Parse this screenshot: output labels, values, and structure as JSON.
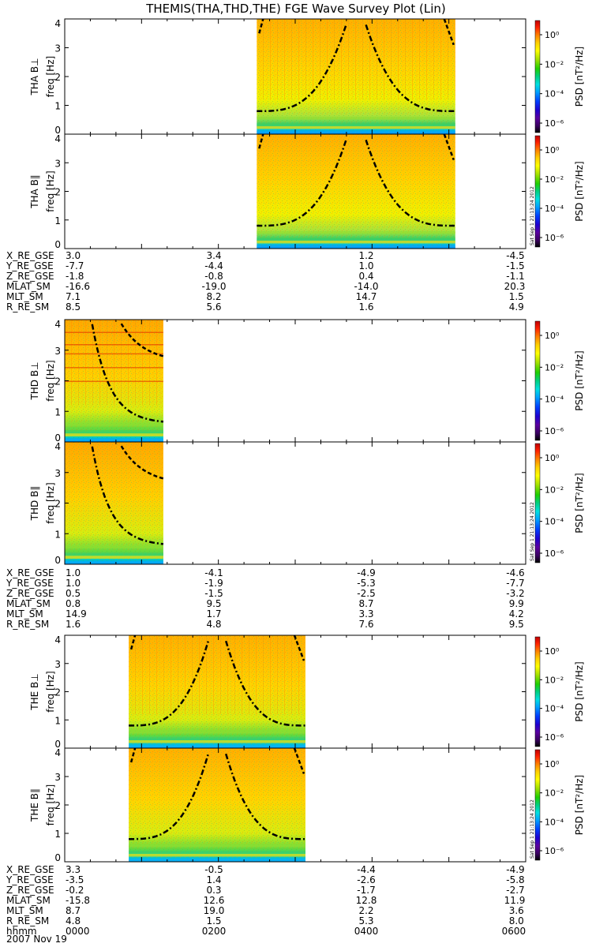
{
  "title": "THEMIS(THA,THD,THE) FGE Wave Survey Plot (Lin)",
  "colorbar": {
    "label": "PSD [nT²/Hz]",
    "tick_labels": [
      "10⁰",
      "10⁻²",
      "10⁻⁴",
      "10⁻⁶"
    ],
    "stamp": "Sat Sep  1 21:13:24 2012",
    "colors": [
      "#000000",
      "#3a0060",
      "#5a00a0",
      "#2000d0",
      "#0040ff",
      "#00a0ff",
      "#00e0e0",
      "#00d080",
      "#20d000",
      "#a0e000",
      "#ffff00",
      "#ffd000",
      "#ff8000",
      "#ff2000",
      "#c00000"
    ]
  },
  "chart_data": [
    {
      "type": "heatmap",
      "probe": "THA",
      "component": "B⊥",
      "ylabel": "THA B⊥",
      "ylabel2": "freq [Hz]",
      "yticks": [
        "0",
        "1",
        "2",
        "3",
        "4"
      ],
      "ylim": [
        0,
        4
      ],
      "data_x_range_hhmm": [
        "0230",
        "0505"
      ],
      "style": "a"
    },
    {
      "type": "heatmap",
      "probe": "THA",
      "component": "B∥",
      "ylabel": "THA B∥",
      "ylabel2": "freq [Hz]",
      "yticks": [
        "0",
        "1",
        "2",
        "3",
        "4"
      ],
      "ylim": [
        0,
        4
      ],
      "data_x_range_hhmm": [
        "0230",
        "0505"
      ],
      "style": "a"
    },
    {
      "type": "heatmap",
      "probe": "THD",
      "component": "B⊥",
      "ylabel": "THD B⊥",
      "ylabel2": "freq [Hz]",
      "yticks": [
        "0",
        "1",
        "2",
        "3",
        "4"
      ],
      "ylim": [
        0,
        4
      ],
      "data_x_range_hhmm": [
        "0000",
        "0117"
      ],
      "style": "d"
    },
    {
      "type": "heatmap",
      "probe": "THD",
      "component": "B∥",
      "ylabel": "THD B∥",
      "ylabel2": "freq [Hz]",
      "yticks": [
        "0",
        "1",
        "2",
        "3",
        "4"
      ],
      "ylim": [
        0,
        4
      ],
      "data_x_range_hhmm": [
        "0000",
        "0117"
      ],
      "style": "d"
    },
    {
      "type": "heatmap",
      "probe": "THE",
      "component": "B⊥",
      "ylabel": "THE B⊥",
      "ylabel2": "freq [Hz]",
      "yticks": [
        "0",
        "1",
        "2",
        "3",
        "4"
      ],
      "ylim": [
        0,
        4
      ],
      "data_x_range_hhmm": [
        "0050",
        "0308"
      ],
      "style": "e"
    },
    {
      "type": "heatmap",
      "probe": "THE",
      "component": "B∥",
      "ylabel": "THE B∥",
      "ylabel2": "freq [Hz]",
      "yticks": [
        "0",
        "1",
        "2",
        "3",
        "4"
      ],
      "ylim": [
        0,
        4
      ],
      "data_x_range_hhmm": [
        "0050",
        "0308"
      ],
      "style": "e"
    }
  ],
  "ephemeris": [
    {
      "rows": [
        {
          "label": "X_RE_GSE",
          "values": [
            "3.0",
            "3.4",
            "1.2",
            "-4.5"
          ]
        },
        {
          "label": "Y_RE_GSE",
          "values": [
            "-7.7",
            "-4.4",
            "1.0",
            "-1.5"
          ]
        },
        {
          "label": "Z_RE_GSE",
          "values": [
            "-1.8",
            "-0.8",
            "0.4",
            "-1.1"
          ]
        },
        {
          "label": "MLAT_SM",
          "values": [
            "-16.6",
            "-19.0",
            "-14.0",
            "20.3"
          ]
        },
        {
          "label": "MLT_SM",
          "values": [
            "7.1",
            "8.2",
            "14.7",
            "1.5"
          ]
        },
        {
          "label": "R_RE_SM",
          "values": [
            "8.5",
            "5.6",
            "1.6",
            "4.9"
          ]
        }
      ]
    },
    {
      "rows": [
        {
          "label": "X_RE_GSE",
          "values": [
            "1.0",
            "-4.1",
            "-4.9",
            "-4.6"
          ]
        },
        {
          "label": "Y_RE_GSE",
          "values": [
            "1.0",
            "-1.9",
            "-5.3",
            "-7.7"
          ]
        },
        {
          "label": "Z_RE_GSE",
          "values": [
            "0.5",
            "-1.5",
            "-2.5",
            "-3.2"
          ]
        },
        {
          "label": "MLAT_SM",
          "values": [
            "0.8",
            "9.5",
            "8.7",
            "9.9"
          ]
        },
        {
          "label": "MLT_SM",
          "values": [
            "14.9",
            "1.7",
            "3.3",
            "4.2"
          ]
        },
        {
          "label": "R_RE_SM",
          "values": [
            "1.6",
            "4.8",
            "7.6",
            "9.5"
          ]
        }
      ]
    },
    {
      "rows": [
        {
          "label": "X_RE_GSE",
          "values": [
            "3.3",
            "-0.5",
            "-4.4",
            "-4.9"
          ]
        },
        {
          "label": "Y_RE_GSE",
          "values": [
            "-3.5",
            "1.4",
            "-2.6",
            "-5.8"
          ]
        },
        {
          "label": "Z_RE_GSE",
          "values": [
            "-0.2",
            "0.3",
            "-1.7",
            "-2.7"
          ]
        },
        {
          "label": "MLAT_SM",
          "values": [
            "-15.8",
            "12.6",
            "12.8",
            "11.9"
          ]
        },
        {
          "label": "MLT_SM",
          "values": [
            "8.7",
            "19.0",
            "2.2",
            "3.6"
          ]
        },
        {
          "label": "R_RE_SM",
          "values": [
            "4.8",
            "1.5",
            "5.3",
            "8.0"
          ]
        },
        {
          "label": "hhmm",
          "values": [
            "0000",
            "0200",
            "0400",
            "0600"
          ]
        }
      ]
    }
  ],
  "date": "2007 Nov 19"
}
